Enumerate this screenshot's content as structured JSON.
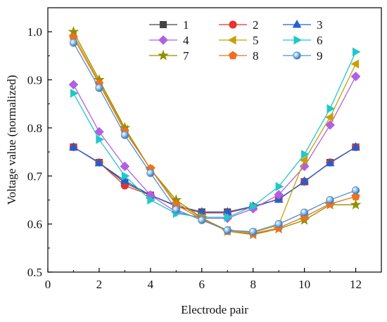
{
  "chart_data": {
    "type": "line",
    "xlabel": "Electrode pair",
    "ylabel": "Voltage value (normalized)",
    "xlim": [
      0,
      13
    ],
    "ylim": [
      0.5,
      1.05
    ],
    "x_ticks": [
      "0",
      "2",
      "4",
      "6",
      "8",
      "10",
      "12"
    ],
    "x_tick_values": [
      0,
      2,
      4,
      6,
      8,
      10,
      12
    ],
    "y_ticks": [
      "0.5",
      "0.6",
      "0.7",
      "0.8",
      "0.9",
      "1.0"
    ],
    "y_tick_values": [
      0.5,
      0.6,
      0.7,
      0.8,
      0.9,
      1.0
    ],
    "grid": false,
    "legend_position": "top-center",
    "x": [
      1,
      2,
      3,
      4,
      5,
      6,
      7,
      8,
      9,
      10,
      11,
      12
    ],
    "series": [
      {
        "name": "1",
        "color": "#444444",
        "marker": "square",
        "values": [
          0.76,
          0.728,
          0.686,
          0.66,
          0.638,
          0.625,
          0.625,
          0.635,
          0.652,
          0.688,
          0.728,
          0.76
        ]
      },
      {
        "name": "2",
        "color": "#e8332a",
        "marker": "circle",
        "values": [
          0.76,
          0.728,
          0.68,
          0.66,
          0.637,
          0.623,
          0.623,
          0.636,
          0.652,
          0.688,
          0.728,
          0.76
        ]
      },
      {
        "name": "3",
        "color": "#2060d0",
        "marker": "triangle-up",
        "values": [
          0.76,
          0.727,
          0.69,
          0.66,
          0.638,
          0.625,
          0.625,
          0.637,
          0.651,
          0.689,
          0.727,
          0.76
        ]
      },
      {
        "name": "4",
        "color": "#b060e0",
        "marker": "diamond",
        "values": [
          0.89,
          0.792,
          0.72,
          0.66,
          0.625,
          0.612,
          0.612,
          0.632,
          0.661,
          0.72,
          0.806,
          0.907
        ]
      },
      {
        "name": "5",
        "color": "#c8a000",
        "marker": "triangle-left",
        "values": [
          0.993,
          0.895,
          0.797,
          0.714,
          0.645,
          0.612,
          0.587,
          0.582,
          0.598,
          0.733,
          0.822,
          0.933
        ]
      },
      {
        "name": "6",
        "color": "#20c8c8",
        "marker": "triangle-right",
        "values": [
          0.872,
          0.776,
          0.7,
          0.65,
          0.622,
          0.614,
          0.614,
          0.637,
          0.678,
          0.745,
          0.84,
          0.958
        ]
      },
      {
        "name": "7",
        "color": "#909000",
        "marker": "star",
        "values": [
          1.0,
          0.9,
          0.8,
          0.714,
          0.65,
          0.613,
          0.585,
          0.578,
          0.59,
          0.608,
          0.64,
          0.64
        ]
      },
      {
        "name": "8",
        "color": "#f07020",
        "marker": "pentagon",
        "values": [
          0.988,
          0.892,
          0.793,
          0.715,
          0.64,
          0.61,
          0.585,
          0.58,
          0.592,
          0.615,
          0.642,
          0.657
        ]
      },
      {
        "name": "9",
        "color": "#4a90d0",
        "marker": "sphere",
        "values": [
          0.977,
          0.883,
          0.785,
          0.706,
          0.63,
          0.608,
          0.587,
          0.584,
          0.6,
          0.624,
          0.65,
          0.67
        ]
      }
    ]
  }
}
